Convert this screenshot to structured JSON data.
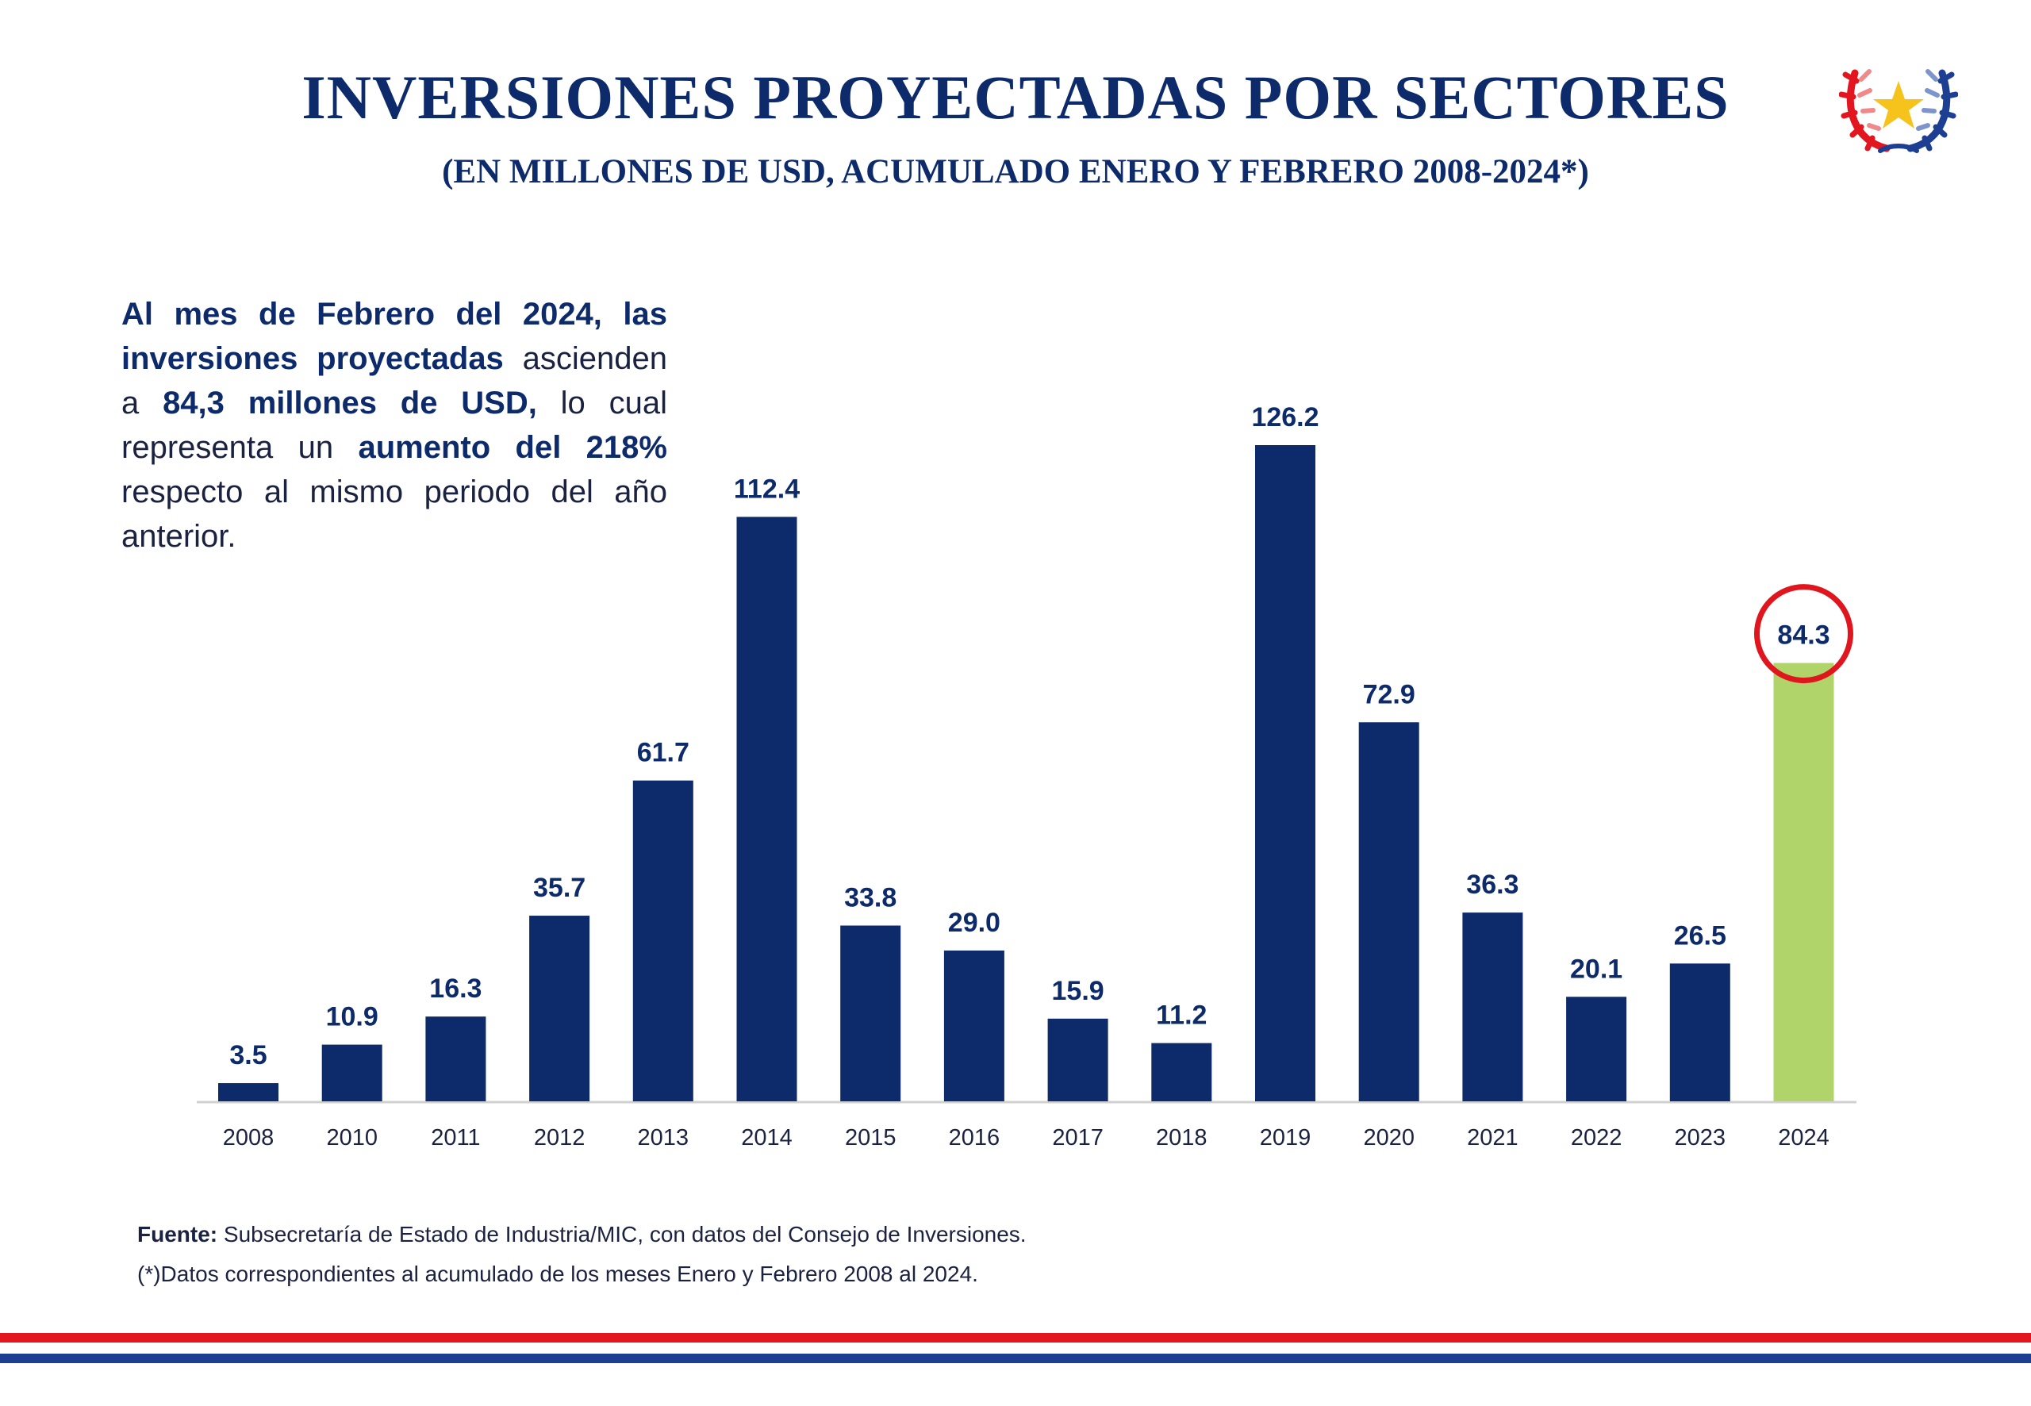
{
  "header": {
    "title": "INVERSIONES PROYECTADAS POR SECTORES",
    "subtitle": "(EN MILLONES DE USD, ACUMULADO ENERO Y FEBRERO 2008-2024*)"
  },
  "summary": {
    "part1": "Al mes de Febrero del 2024, las inversiones proyectadas",
    "part2": " ascienden a ",
    "part3": "84,3 millones de USD,",
    "part4": " lo cual representa un ",
    "part5": "aumento del 218%",
    "part6": " respecto al mismo periodo del año anterior."
  },
  "footer": {
    "source_label": "Fuente:",
    "source_text": " Subsecretaría de Estado de Industria/MIC, con datos del Consejo de Inversiones.",
    "note": "(*)Datos correspondientes al acumulado de los meses Enero y Febrero 2008 al 2024."
  },
  "icons": {
    "emblem": "national-seal-icon"
  },
  "colors": {
    "bar": "#0d2a6b",
    "highlight_bar": "#b0d46a",
    "highlight_circle": "#e0161e",
    "stripe_red": "#e3161f",
    "stripe_blue": "#1d3f93"
  },
  "chart_data": {
    "type": "bar",
    "categories": [
      "2008",
      "2010",
      "2011",
      "2012",
      "2013",
      "2014",
      "2015",
      "2016",
      "2017",
      "2018",
      "2019",
      "2020",
      "2021",
      "2022",
      "2023",
      "2024"
    ],
    "values": [
      3.5,
      10.9,
      16.3,
      35.7,
      61.7,
      112.4,
      33.8,
      29.0,
      15.9,
      11.2,
      126.2,
      72.9,
      36.3,
      20.1,
      26.5,
      84.3
    ],
    "value_labels": [
      "3.5",
      "10.9",
      "16.3",
      "35.7",
      "61.7",
      "112.4",
      "33.8",
      "29.0",
      "15.9",
      "11.2",
      "126.2",
      "72.9",
      "36.3",
      "20.1",
      "26.5",
      "84.3"
    ],
    "highlight": "2024",
    "ylim": [
      0,
      126.2
    ],
    "grid": false,
    "legend": "none"
  }
}
